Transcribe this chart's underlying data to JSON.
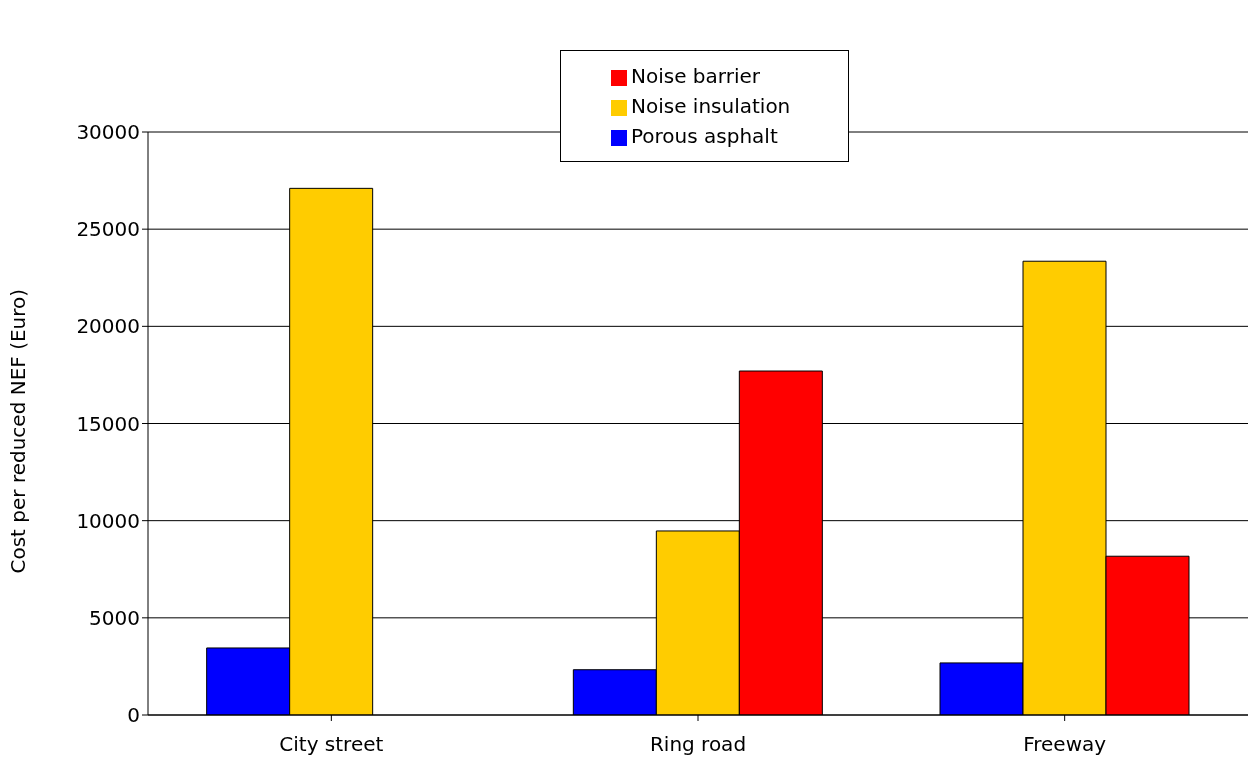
{
  "chart_data": {
    "type": "bar",
    "ylabel": "Cost per reduced NEF (Euro)",
    "categories": [
      "City street",
      "Ring road",
      "Freeway"
    ],
    "series": [
      {
        "name": "Porous asphalt",
        "color": "#0000ff",
        "values": [
          3450,
          2330,
          2680
        ]
      },
      {
        "name": "Noise insulation",
        "color": "#ffcc00",
        "values": [
          27100,
          9470,
          23350
        ]
      },
      {
        "name": "Noise barrier",
        "color": "#ff0000",
        "values": [
          null,
          17700,
          8170
        ]
      }
    ],
    "ylim": [
      0,
      30000
    ],
    "yticks": [
      0,
      5000,
      10000,
      15000,
      20000,
      25000,
      30000
    ],
    "grid": "y",
    "legend": "top"
  }
}
